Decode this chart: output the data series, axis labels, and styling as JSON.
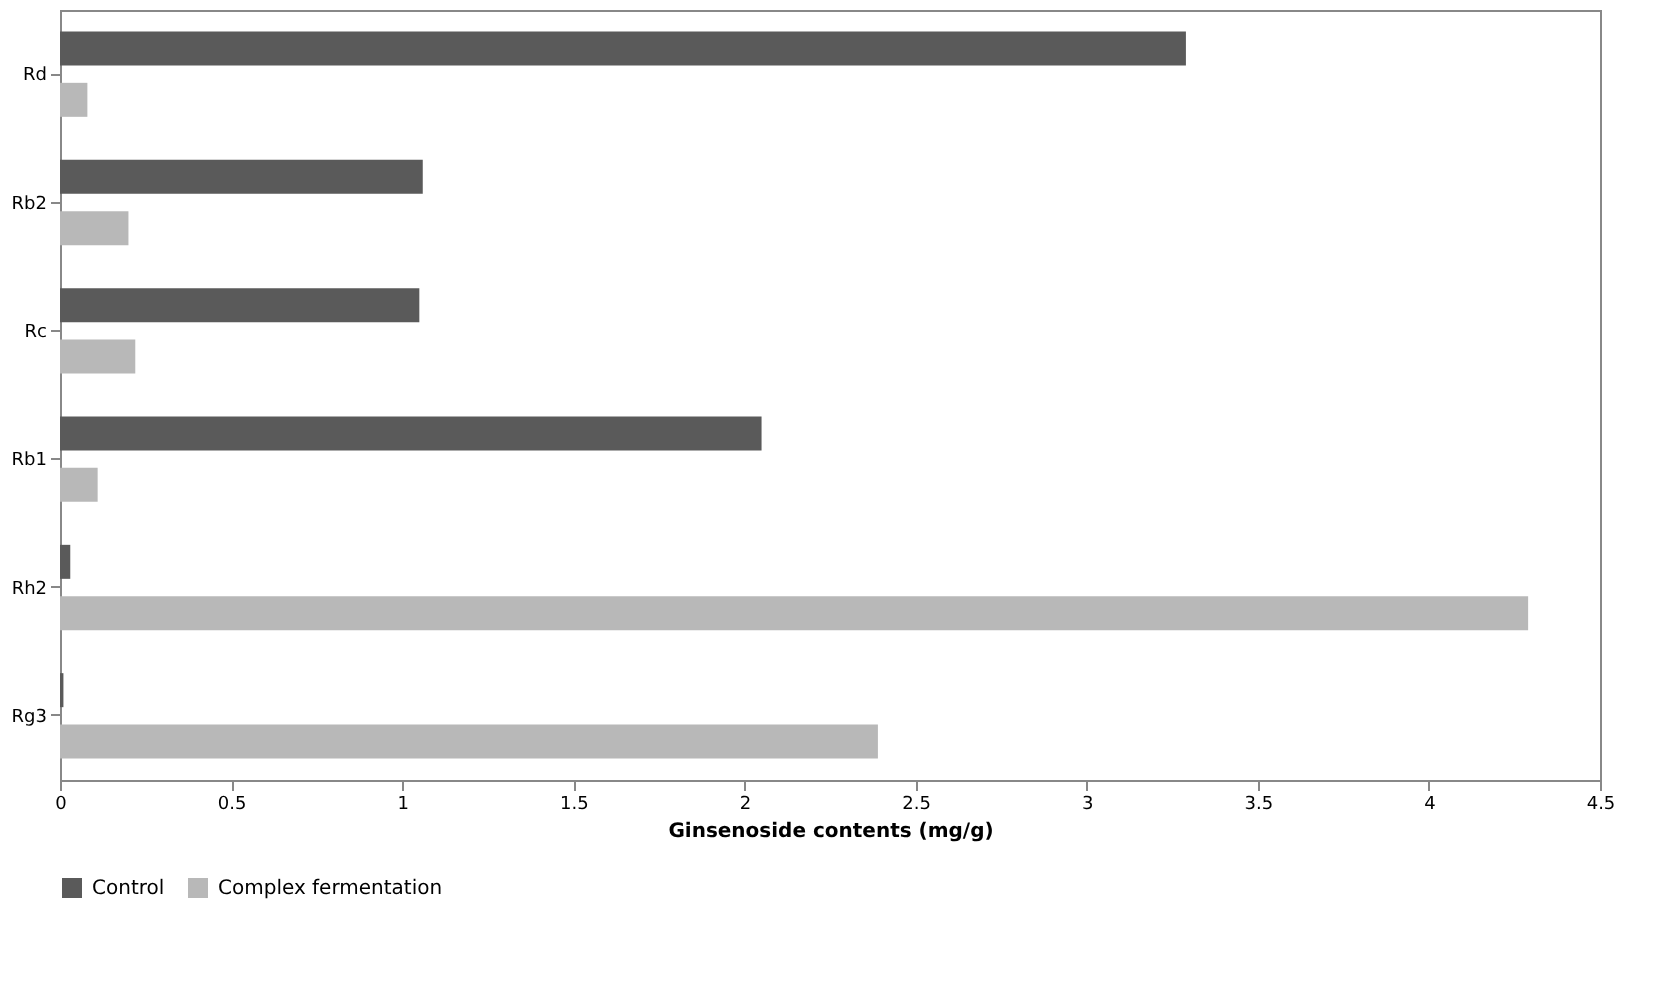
{
  "chart_data": {
    "type": "bar",
    "orientation": "horizontal",
    "xlabel": "Ginsenoside contents (mg/g)",
    "categories": [
      "Rd",
      "Rb2",
      "Rc",
      "Rb1",
      "Rh2",
      "Rg3"
    ],
    "series": [
      {
        "name": "Control",
        "color": "#5a5a5a",
        "values": [
          3.29,
          1.06,
          1.05,
          2.05,
          0.03,
          0.01
        ]
      },
      {
        "name": "Complex fermentation",
        "color": "#b8b8b8",
        "values": [
          0.08,
          0.2,
          0.22,
          0.11,
          4.29,
          2.39
        ]
      }
    ],
    "xlim": [
      0,
      4.5
    ],
    "xticks": [
      0,
      0.5,
      1,
      1.5,
      2,
      2.5,
      3,
      3.5,
      4,
      4.5
    ],
    "grid": false,
    "legend": "bottom"
  }
}
